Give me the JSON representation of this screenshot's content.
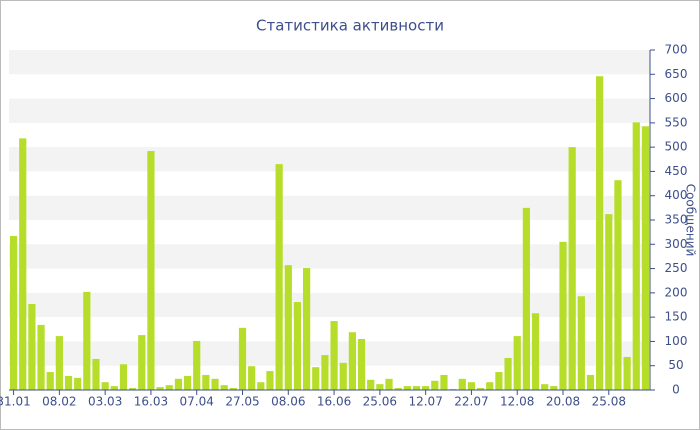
{
  "chart_data": {
    "type": "bar",
    "title": "Статистика активности",
    "y_label": "Сообщений",
    "categories": [
      "31.01",
      null,
      null,
      null,
      null,
      "08.02",
      null,
      null,
      null,
      null,
      "03.03",
      null,
      null,
      null,
      null,
      "16.03",
      null,
      null,
      null,
      null,
      "07.04",
      null,
      null,
      null,
      null,
      "27.05",
      null,
      null,
      null,
      null,
      "08.06",
      null,
      null,
      null,
      null,
      "16.06",
      null,
      null,
      null,
      null,
      "25.06",
      null,
      null,
      null,
      null,
      "12.07",
      null,
      null,
      null,
      null,
      "22.07",
      null,
      null,
      null,
      null,
      "12.08",
      null,
      null,
      null,
      null,
      "20.08",
      null,
      null,
      null,
      null,
      "25.08",
      null,
      null,
      null,
      null
    ],
    "values": [
      317,
      518,
      177,
      134,
      37,
      111,
      29,
      25,
      202,
      64,
      16,
      8,
      53,
      4,
      113,
      492,
      6,
      10,
      23,
      29,
      101,
      31,
      23,
      10,
      4,
      128,
      49,
      16,
      39,
      465,
      257,
      181,
      251,
      47,
      72,
      142,
      56,
      119,
      105,
      21,
      12,
      23,
      4,
      8,
      8,
      8,
      19,
      31,
      2,
      23,
      16,
      4,
      16,
      37,
      66,
      111,
      375,
      158,
      12,
      8,
      305,
      500,
      193,
      31,
      646,
      362,
      432,
      68,
      551,
      543
    ],
    "color": "#b5dd2a",
    "ylim": [
      0,
      700
    ],
    "yticks": [
      0,
      50,
      100,
      150,
      200,
      250,
      300,
      350,
      400,
      450,
      500,
      550,
      600,
      650,
      700
    ],
    "grid": true,
    "y_axis_side": "right"
  }
}
